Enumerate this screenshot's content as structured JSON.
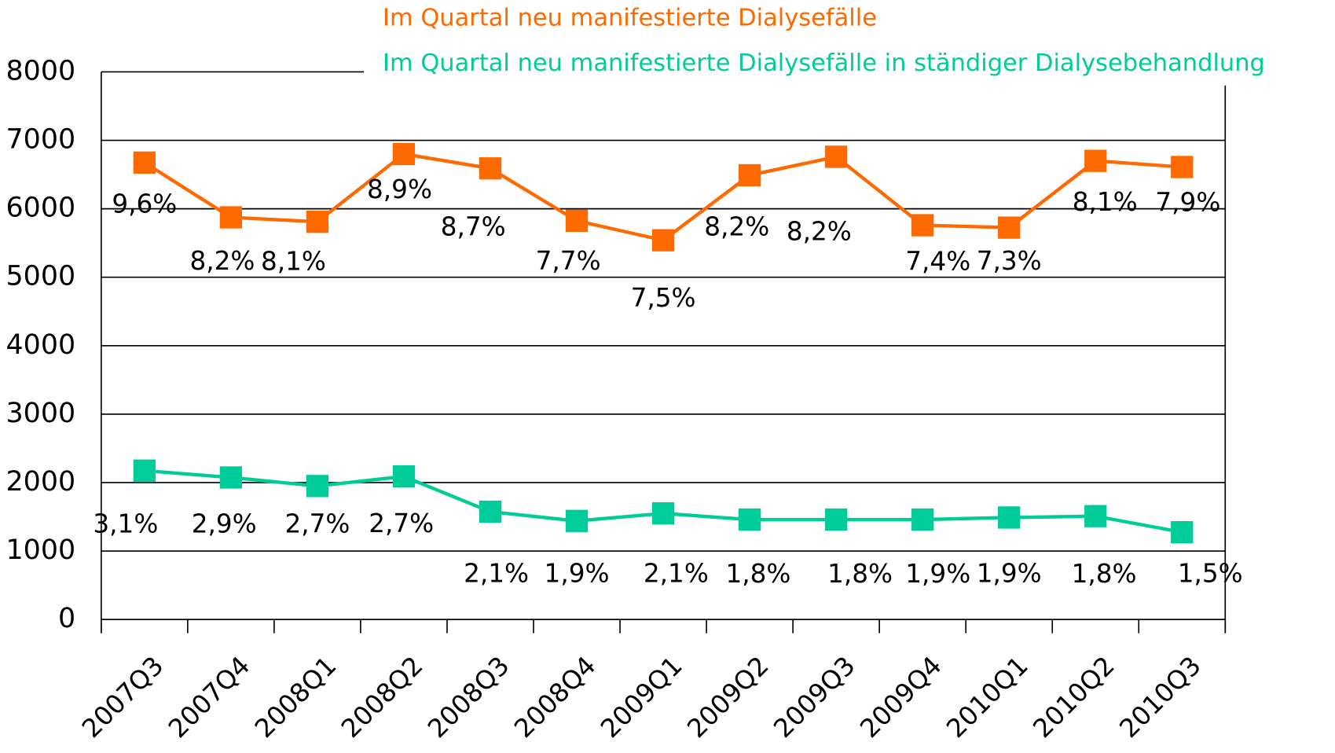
{
  "chart_data": {
    "type": "line",
    "categories": [
      "2007Q3",
      "2007Q4",
      "2008Q1",
      "2008Q2",
      "2008Q3",
      "2008Q4",
      "2009Q1",
      "2009Q2",
      "2009Q3",
      "2009Q4",
      "2010Q1",
      "2010Q2",
      "2010Q3"
    ],
    "series": [
      {
        "name": "Im Quartal neu manifestierte Dialysefälle",
        "color": "#ff6a00",
        "values": [
          6675,
          5875,
          5810,
          6800,
          6590,
          5825,
          5540,
          6490,
          6760,
          5760,
          5725,
          6700,
          6610
        ],
        "labels": [
          "9,6%",
          "8,2%",
          "8,1%",
          "8,9%",
          "8,7%",
          "7,7%",
          "7,5%",
          "8,2%",
          "8,2%",
          "7,4%",
          "7,3%",
          "8,1%",
          "7,9%"
        ]
      },
      {
        "name": "Im Quartal neu manifestierte Dialysefälle in ständiger Dialysebehandlung",
        "color": "#00cc99",
        "values": [
          2175,
          2075,
          1950,
          2090,
          1575,
          1440,
          1550,
          1460,
          1460,
          1460,
          1490,
          1510,
          1275
        ],
        "labels": [
          "3,1%",
          "2,9%",
          "2,7%",
          "2,7%",
          "2,1%",
          "1,9%",
          "2,1%",
          "1,8%",
          "1,8%",
          "1,9%",
          "1,9%",
          "1,8%",
          "1,5%"
        ]
      }
    ],
    "ylim": [
      0,
      8000
    ],
    "yticks": [
      0,
      1000,
      2000,
      3000,
      4000,
      5000,
      6000,
      7000,
      8000
    ],
    "grid": true
  }
}
